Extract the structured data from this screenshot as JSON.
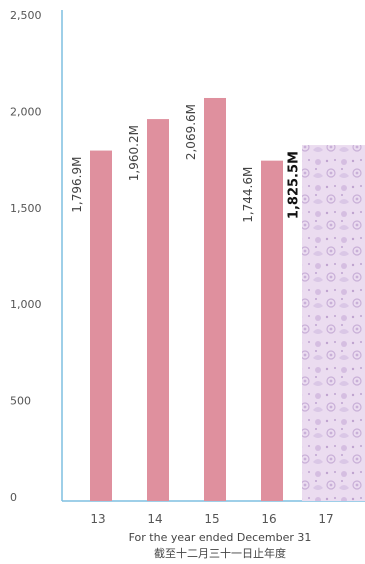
{
  "chart_data": {
    "type": "bar",
    "categories": [
      "13",
      "14",
      "15",
      "16",
      "17"
    ],
    "values": [
      1796.9,
      1960.2,
      2069.6,
      1744.6,
      1825.5
    ],
    "data_labels": [
      "1,796.9M",
      "1,960.2M",
      "2,069.6M",
      "1,744.6M",
      "1,825.5M"
    ],
    "highlight_index": 4,
    "y_ticks": [
      0,
      500,
      1000,
      1500,
      2000,
      2500
    ],
    "y_tick_labels": [
      "0",
      "500",
      "1,000",
      "1,500",
      "2,000",
      "2,500"
    ],
    "ylim": [
      0,
      2500
    ],
    "xlabel": "For the year ended December 31",
    "xlabel_zh": "截至十二月三十一日止年度",
    "grid": false,
    "colors": {
      "bar": "#df909e",
      "highlight_bg": "#ebdcf0",
      "highlight_pattern": "#c9b0d8",
      "axis": "#7fbfe0"
    }
  }
}
